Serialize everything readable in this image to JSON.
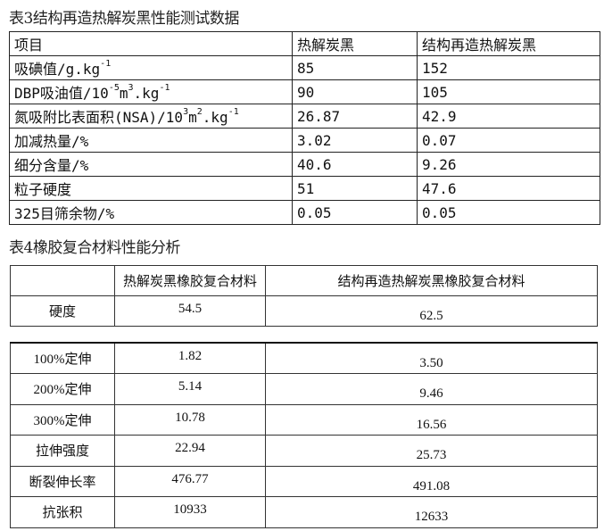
{
  "table3": {
    "caption": "表3结构再造热解炭黑性能测试数据",
    "headers": [
      "项目",
      "热解炭黑",
      "结构再造热解炭黑"
    ],
    "rows": [
      {
        "label": "吸碘值/g.kg",
        "sup": "-1",
        "a": "85",
        "b": "152"
      },
      {
        "label": "DBP吸油值/10",
        "sup1": "-5",
        "mid": "m",
        "sup2": "3",
        "tail": ".kg",
        "sup": "-1",
        "a": "90",
        "b": "105"
      },
      {
        "label": "氮吸附比表面积(NSA)/10",
        "sup1": "3",
        "mid": "m",
        "sup2": "2",
        "tail": ".kg",
        "sup": "-1",
        "a": "26.87",
        "b": "42.9"
      },
      {
        "label": "加减热量/%",
        "a": "3.02",
        "b": "0.07"
      },
      {
        "label": "细分含量/%",
        "a": "40.6",
        "b": "9.26"
      },
      {
        "label": "粒子硬度",
        "a": "51",
        "b": "47.6"
      },
      {
        "label": "325目筛余物/%",
        "a": "0.05",
        "b": "0.05"
      }
    ]
  },
  "table4": {
    "caption": "表4橡胶复合材料性能分析",
    "headers": [
      "",
      "热解炭黑橡胶复合材料",
      "结构再造热解炭黑橡胶复合材料"
    ],
    "rows": [
      {
        "label": "硬度",
        "a": "54.5",
        "b": "62.5"
      },
      {
        "label": "100%定伸",
        "a": "1.82",
        "b": "3.50"
      },
      {
        "label": "200%定伸",
        "a": "5.14",
        "b": "9.46"
      },
      {
        "label": "300%定伸",
        "a": "10.78",
        "b": "16.56"
      },
      {
        "label": "拉伸强度",
        "a": "22.94",
        "b": "25.73"
      },
      {
        "label": "断裂伸长率",
        "a": "476.77",
        "b": "491.08"
      },
      {
        "label": "抗张积",
        "a": "10933",
        "b": "12633"
      }
    ]
  }
}
